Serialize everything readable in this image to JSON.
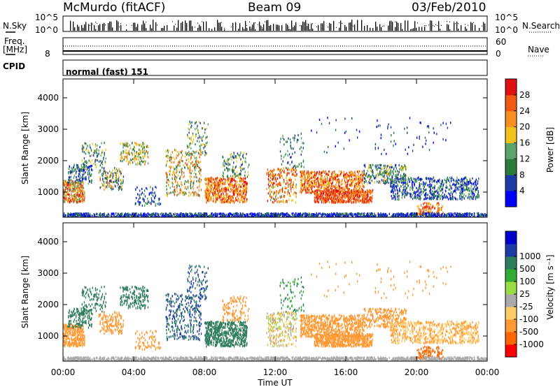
{
  "header": {
    "radar": "McMurdo (fitACF)",
    "beam": "Beam 09",
    "date": "03/Feb/2010"
  },
  "strip": {
    "nsky_label": "N.Sky",
    "nsearch_label": "N.Search",
    "noise_ticks": [
      "10^5",
      "10^0"
    ],
    "freq_label_line1": "Freq.",
    "freq_label_line2": "[MHz]",
    "freq_tick": "8",
    "nave_label": "Nave",
    "nave_ticks": [
      "60",
      "0"
    ],
    "cpid_label": "CPID",
    "cpid_value": "normal (fast) 151"
  },
  "colors": {
    "power_scale": [
      "#0000ff",
      "#1e3ca8",
      "#2b7a3c",
      "#5aa36a",
      "#f2c21b",
      "#f7901e",
      "#f05a14",
      "#e01010"
    ],
    "velocity_scale": [
      "#ff0000",
      "#ff6600",
      "#ff9933",
      "#ffcc66",
      "#aaaaaa",
      "#99dd44",
      "#33aa33",
      "#2e7d5b",
      "#1e3ca8",
      "#0000cc"
    ]
  },
  "chart_data": [
    {
      "type": "heatmap",
      "title": "Power",
      "xlabel": "Time UT",
      "ylabel": "Slant Range [km]",
      "x_ticks": [
        "00:00",
        "04:00",
        "08:00",
        "12:00",
        "16:00",
        "20:00",
        "00:00"
      ],
      "y_ticks": [
        1000,
        2000,
        3000,
        4000
      ],
      "ylim": [
        200,
        4600
      ],
      "colorbar": {
        "label": "Power [dB]",
        "ticks": [
          4,
          8,
          12,
          16,
          20,
          24,
          28
        ],
        "range": [
          0,
          32
        ]
      }
    },
    {
      "type": "heatmap",
      "title": "Velocity",
      "xlabel": "Time UT",
      "ylabel": "Slant Range [km]",
      "x_ticks": [
        "00:00",
        "04:00",
        "08:00",
        "12:00",
        "16:00",
        "20:00",
        "00:00"
      ],
      "y_ticks": [
        1000,
        2000,
        3000,
        4000
      ],
      "ylim": [
        200,
        4600
      ],
      "colorbar": {
        "label": "Velocity [m s⁻¹]",
        "ticks": [
          -1000,
          -500,
          -100,
          -25,
          25,
          100,
          500,
          1000
        ],
        "tick_labels": [
          "-1000",
          "-500",
          "-100",
          "-25",
          "25",
          "100",
          "500",
          "1000"
        ]
      }
    }
  ]
}
